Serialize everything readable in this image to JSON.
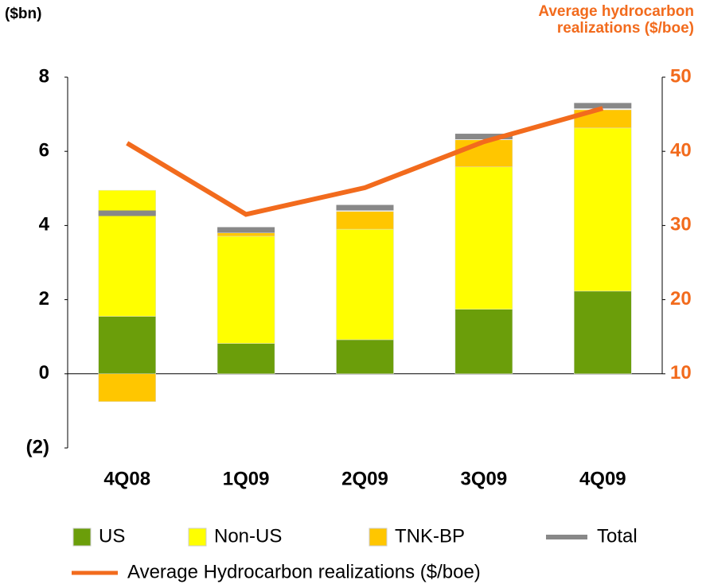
{
  "chart_data": {
    "type": "bar",
    "stacked": true,
    "ylabel": "($bn)",
    "y2label": "Average hydrocarbon realizations ($/boe)",
    "categories": [
      "4Q08",
      "1Q09",
      "2Q09",
      "3Q09",
      "4Q09"
    ],
    "series": [
      {
        "name": "US",
        "color": "#6b9e0a",
        "type": "bar",
        "values": [
          1.55,
          0.82,
          0.92,
          1.74,
          2.23
        ]
      },
      {
        "name": "Non-US",
        "color": "#ffff00",
        "type": "bar",
        "values": [
          3.4,
          2.89,
          2.98,
          3.84,
          4.4
        ]
      },
      {
        "name": "TNK-BP",
        "color": "#ffc600",
        "type": "bar",
        "values": [
          -0.75,
          0.09,
          0.48,
          0.73,
          0.49
        ]
      },
      {
        "name": "Total",
        "color": "#888888",
        "type": "marker",
        "values": [
          4.33,
          3.88,
          4.48,
          6.4,
          7.23
        ]
      },
      {
        "name": "Average Hydrocarbon realizations ($/boe)",
        "color": "#f26b1d",
        "type": "line",
        "axis": "y2",
        "values": [
          41.1,
          31.5,
          35.1,
          41.3,
          45.8
        ]
      }
    ],
    "ylim": [
      -2,
      8
    ],
    "yticks": [
      8,
      6,
      4,
      2,
      0,
      {
        "value": -2,
        "label": "(2)"
      }
    ],
    "y2lim": [
      10,
      50
    ],
    "y2ticks": [
      50,
      40,
      30,
      20,
      10
    ]
  }
}
